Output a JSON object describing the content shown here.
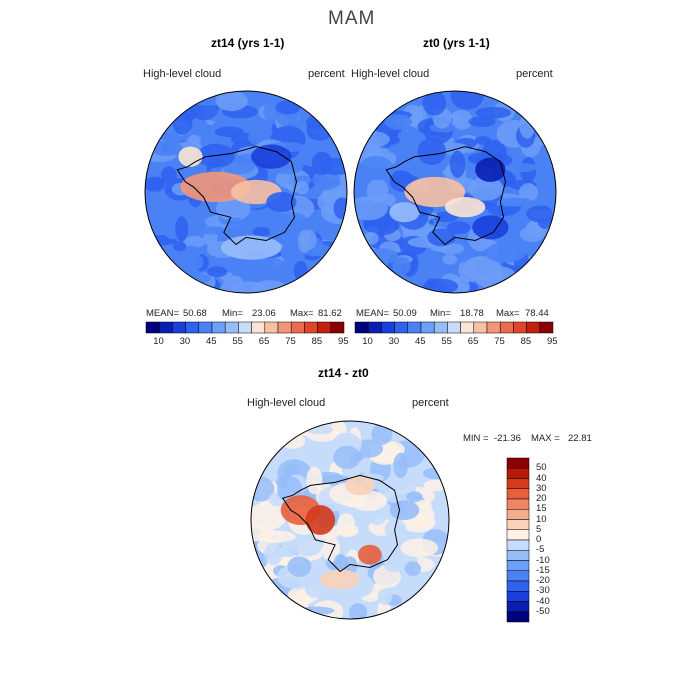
{
  "figure": {
    "title": "MAM"
  },
  "panels": [
    {
      "title": "zt14 (yrs 1-1)",
      "left_label": "High-level  cloud",
      "right_label": "percent",
      "stats": {
        "mean_label": "MEAN=",
        "mean": "50.68",
        "min_label": "Min=",
        "min": "23.06",
        "max_label": "Max=",
        "max": "81.62"
      }
    },
    {
      "title": "zt0 (yrs 1-1)",
      "left_label": "High-level  cloud",
      "right_label": "percent",
      "stats": {
        "mean_label": "MEAN=",
        "mean": "50.09",
        "min_label": "Min=",
        "min": "18.78",
        "max_label": "Max=",
        "max": "78.44"
      }
    },
    {
      "title": "zt14 - zt0",
      "left_label": "High-level  cloud",
      "right_label": "percent",
      "stats": {
        "min_label": "MIN =",
        "min": "-21.36",
        "max_label": "MAX =",
        "max": "22.81"
      }
    }
  ],
  "colorbar_abs": {
    "colors": [
      "#00007f",
      "#0a1fb2",
      "#1a3fdd",
      "#2e62ef",
      "#4a82f6",
      "#6d9ef8",
      "#97bdf9",
      "#c6dcfa",
      "#fbe4d2",
      "#f7c0a3",
      "#f2967a",
      "#ea6b4e",
      "#e0452c",
      "#c4200f",
      "#8b0000"
    ],
    "tick_labels": [
      "10",
      "30",
      "45",
      "55",
      "65",
      "75",
      "85",
      "95"
    ]
  },
  "colorbar_diff": {
    "colors": [
      "#00007f",
      "#0a1fb2",
      "#1a3fdd",
      "#2e62ef",
      "#4a82f6",
      "#6d9ef8",
      "#97bdf9",
      "#c6dcfa",
      "#fdf1e6",
      "#f9d2b8",
      "#f4ad8c",
      "#ee8663",
      "#e85f3d",
      "#d43a1c",
      "#b81a08",
      "#8b0000"
    ],
    "tick_labels": [
      "50",
      "40",
      "30",
      "20",
      "15",
      "10",
      "5",
      "0",
      "-5",
      "-10",
      "-15",
      "-20",
      "-30",
      "-40",
      "-50"
    ]
  },
  "chart_data": [
    {
      "type": "heatmap",
      "title": "zt14 (yrs 1-1)",
      "variable": "High-level cloud",
      "units": "percent",
      "projection": "south polar stereographic",
      "season": "MAM",
      "stats": {
        "mean": 50.68,
        "min": 23.06,
        "max": 81.62
      },
      "levels": [
        10,
        30,
        45,
        55,
        65,
        75,
        85,
        95
      ]
    },
    {
      "type": "heatmap",
      "title": "zt0 (yrs 1-1)",
      "variable": "High-level cloud",
      "units": "percent",
      "projection": "south polar stereographic",
      "season": "MAM",
      "stats": {
        "mean": 50.09,
        "min": 18.78,
        "max": 78.44
      },
      "levels": [
        10,
        30,
        45,
        55,
        65,
        75,
        85,
        95
      ]
    },
    {
      "type": "heatmap",
      "title": "zt14 - zt0",
      "variable": "High-level cloud",
      "units": "percent",
      "projection": "south polar stereographic",
      "season": "MAM",
      "stats": {
        "min": -21.36,
        "max": 22.81
      },
      "levels": [
        -50,
        -40,
        -30,
        -20,
        -15,
        -10,
        -5,
        0,
        5,
        10,
        15,
        20,
        30,
        40,
        50
      ]
    }
  ]
}
